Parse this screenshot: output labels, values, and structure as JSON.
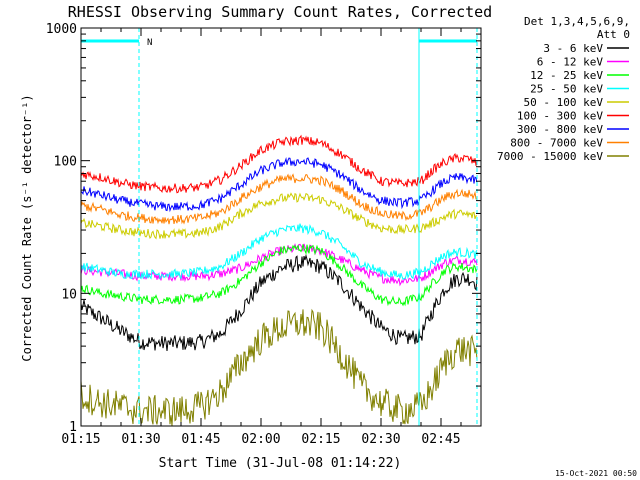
{
  "colors": {
    "band_3_6": "#000000",
    "band_6_12": "#ff00ff",
    "band_12_25": "#00ff00",
    "band_25_50": "#00ffff",
    "band_50_100": "#cccc00",
    "band_100_300": "#ff0000",
    "band_300_800": "#0000ff",
    "band_800_7000": "#ff8000",
    "band_7000_15000": "#808000",
    "night_marker": "#00ffff"
  },
  "chart_data": {
    "type": "line",
    "title": "RHESSI Observing Summary Count Rates, Corrected",
    "xlabel": "Start Time (31-Jul-08 01:14:22)",
    "ylabel": "Corrected Count Rate (s⁻¹ detector⁻¹)",
    "yscale": "log",
    "ylim": [
      1,
      1000
    ],
    "xlim_minutes_after_0115": [
      0,
      100
    ],
    "x_ticks": [
      "01:15",
      "01:30",
      "01:45",
      "02:00",
      "02:15",
      "02:30",
      "02:45"
    ],
    "y_ticks": [
      "1",
      "10",
      "100",
      "1000"
    ],
    "legend_header": [
      "Det 1,3,4,5,6,9,",
      "Att 0"
    ],
    "legend_position": "right",
    "timestamp": "15-Oct-2021 00:50",
    "night_flag_label": "N",
    "night_intervals_minutes": [
      [
        0,
        14.5
      ],
      [
        84.5,
        99
      ]
    ],
    "x": [
      0,
      5,
      10,
      15,
      20,
      25,
      30,
      35,
      40,
      45,
      50,
      55,
      60,
      65,
      70,
      75,
      80,
      85,
      88,
      91,
      94,
      97,
      99
    ],
    "series": [
      {
        "name": "3 - 6 keV",
        "color_key": "band_3_6",
        "values": [
          8,
          6.5,
          5.2,
          4.3,
          4.2,
          4.2,
          4.3,
          5,
          7.5,
          12,
          15.5,
          17,
          16,
          12,
          8,
          5.5,
          4.5,
          4.8,
          7.5,
          11,
          13,
          13,
          12
        ]
      },
      {
        "name": "6 - 12 keV",
        "color_key": "band_6_12",
        "values": [
          15,
          14.5,
          14,
          13.5,
          13.5,
          13.5,
          13.5,
          14,
          15.5,
          18.5,
          21,
          22,
          21,
          18,
          15,
          13,
          12.5,
          13,
          15,
          17,
          18,
          17.5,
          17
        ]
      },
      {
        "name": "12 - 25 keV",
        "color_key": "band_12_25",
        "values": [
          11,
          10,
          9.5,
          9,
          9,
          9,
          9.2,
          10,
          12.5,
          17,
          21,
          22,
          21,
          16,
          11.5,
          9,
          8.5,
          9.5,
          12,
          15,
          16,
          15.5,
          15
        ]
      },
      {
        "name": "25 - 50 keV",
        "color_key": "band_25_50",
        "values": [
          16,
          15,
          14,
          14,
          14,
          14,
          14.5,
          16,
          20,
          26,
          30,
          31,
          29,
          23,
          17,
          14.5,
          13.5,
          14.5,
          17,
          19.5,
          20.5,
          20,
          19.5
        ]
      },
      {
        "name": "50 - 100 keV",
        "color_key": "band_50_100",
        "values": [
          34,
          32,
          30,
          28.5,
          28,
          28,
          28.5,
          32,
          40,
          48,
          52,
          53,
          51,
          44,
          36,
          31,
          30,
          31,
          34,
          38,
          40,
          39,
          38
        ]
      },
      {
        "name": "100 - 300 keV",
        "color_key": "band_100_300",
        "values": [
          80,
          75,
          68,
          64,
          62,
          62,
          63,
          72,
          92,
          120,
          138,
          143,
          136,
          112,
          86,
          70,
          67,
          70,
          85,
          98,
          105,
          103,
          95
        ]
      },
      {
        "name": "300 - 800 keV",
        "color_key": "band_300_800",
        "values": [
          60,
          55,
          50,
          47,
          45,
          45,
          46,
          52,
          66,
          84,
          96,
          99,
          94,
          78,
          60,
          50,
          48,
          50,
          60,
          70,
          75,
          73,
          70
        ]
      },
      {
        "name": "800 - 7000 keV",
        "color_key": "band_800_7000",
        "values": [
          46,
          43,
          39,
          37,
          36,
          36,
          37,
          41,
          52,
          64,
          72,
          74,
          71,
          60,
          47,
          40,
          38,
          40,
          46,
          53,
          57,
          56,
          54
        ]
      },
      {
        "name": "7000 - 15000 keV",
        "color_key": "band_7000_15000",
        "values": [
          1.7,
          1.5,
          1.4,
          1.3,
          1.3,
          1.3,
          1.4,
          1.8,
          3,
          4.5,
          5.5,
          6,
          5.5,
          3.5,
          2,
          1.5,
          1.3,
          1.4,
          2,
          3,
          3.8,
          3.7,
          3.5
        ]
      }
    ]
  }
}
